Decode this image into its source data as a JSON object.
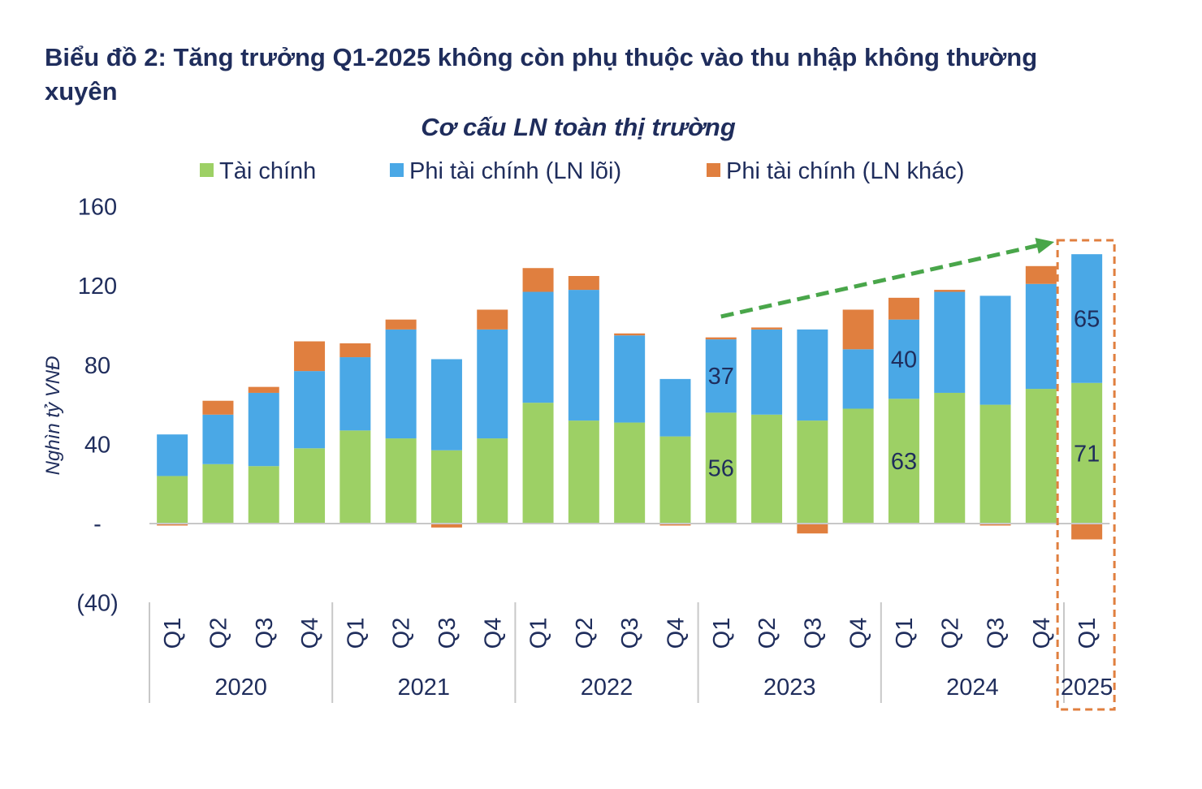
{
  "figure": {
    "title": "Biểu đồ 2: Tăng trưởng Q1-2025 không còn phụ thuộc vào thu nhập không thường xuyên"
  },
  "colors": {
    "financial": "#9dd065",
    "core": "#4aa8e6",
    "other": "#e07f3f",
    "text": "#1f2d5c",
    "arrow": "#49a64a",
    "highlight": "#e07f3f",
    "axis": "#c8c8c8"
  },
  "chart_data": {
    "type": "bar",
    "stacked": true,
    "title": "Cơ cấu LN toàn thị trường",
    "ylabel": "Nghìn tỷ VNĐ",
    "xlabel": "",
    "ylim": [
      -40,
      160
    ],
    "yticks": [
      160,
      120,
      80,
      40,
      0,
      -40
    ],
    "ytick_labels": [
      "160",
      "120",
      "80",
      "40",
      "-",
      "(40)"
    ],
    "grid": false,
    "legend_position": "top",
    "categories": [
      "Q1",
      "Q2",
      "Q3",
      "Q4",
      "Q1",
      "Q2",
      "Q3",
      "Q4",
      "Q1",
      "Q2",
      "Q3",
      "Q4",
      "Q1",
      "Q2",
      "Q3",
      "Q4",
      "Q1",
      "Q2",
      "Q3",
      "Q4",
      "Q1"
    ],
    "groups": [
      {
        "label": "2020",
        "count": 4
      },
      {
        "label": "2021",
        "count": 4
      },
      {
        "label": "2022",
        "count": 4
      },
      {
        "label": "2023",
        "count": 4
      },
      {
        "label": "2024",
        "count": 4
      },
      {
        "label": "2025",
        "count": 1
      }
    ],
    "series": [
      {
        "name": "Tài chính",
        "color_key": "financial",
        "values": [
          24,
          30,
          29,
          38,
          47,
          43,
          37,
          43,
          61,
          52,
          51,
          44,
          56,
          55,
          52,
          58,
          63,
          66,
          60,
          68,
          71
        ]
      },
      {
        "name": "Phi tài chính (LN lõi)",
        "color_key": "core",
        "values": [
          21,
          25,
          37,
          39,
          37,
          55,
          46,
          55,
          56,
          66,
          44,
          29,
          37,
          43,
          46,
          30,
          40,
          51,
          55,
          53,
          65
        ]
      },
      {
        "name": "Phi tài chính (LN khác)",
        "color_key": "other",
        "values": [
          -1,
          7,
          3,
          15,
          7,
          5,
          -2,
          10,
          12,
          7,
          1,
          -1,
          1,
          1,
          -5,
          20,
          11,
          1,
          -1,
          9,
          -8
        ]
      }
    ],
    "data_labels": [
      {
        "index": 12,
        "series": 0,
        "text": "56"
      },
      {
        "index": 12,
        "series": 1,
        "text": "37"
      },
      {
        "index": 16,
        "series": 0,
        "text": "63"
      },
      {
        "index": 16,
        "series": 1,
        "text": "40"
      },
      {
        "index": 20,
        "series": 0,
        "text": "71"
      },
      {
        "index": 20,
        "series": 1,
        "text": "65"
      }
    ],
    "annotations": [
      {
        "type": "trend-arrow",
        "from_index": 12,
        "to_index": 20
      },
      {
        "type": "highlight-box",
        "index": 20
      }
    ]
  }
}
